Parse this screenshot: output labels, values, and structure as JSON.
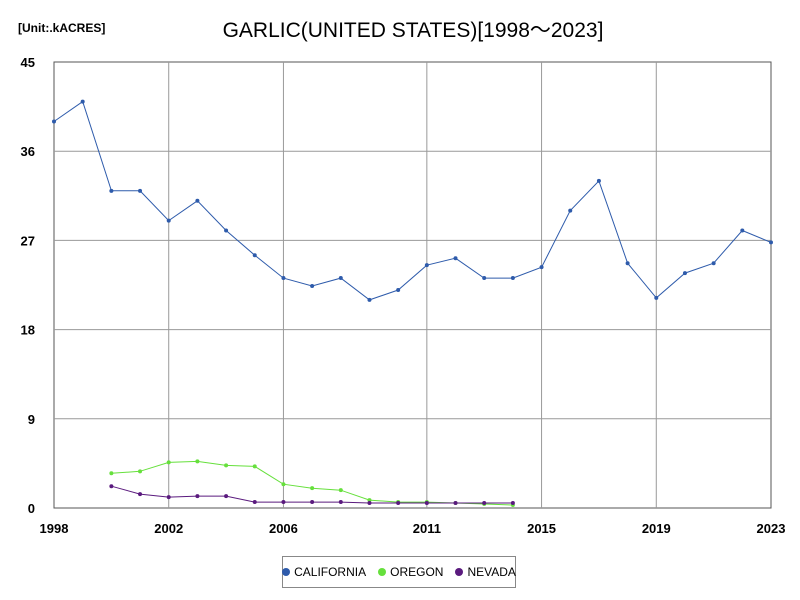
{
  "unit_label": "[Unit:.kACRES]",
  "chart_data": {
    "type": "line",
    "title": "GARLIC(UNITED STATES)[1998～2023]",
    "xlim": [
      1998,
      2023
    ],
    "ylim": [
      0,
      45
    ],
    "x_ticks": [
      "1998",
      "2002",
      "2006",
      "2011",
      "2015",
      "2019",
      "2023"
    ],
    "y_ticks": [
      "0",
      "9",
      "18",
      "27",
      "36",
      "45"
    ],
    "grid": true,
    "legend_position": "bottom",
    "series": [
      {
        "name": "CALIFORNIA",
        "color": "#2e5bab",
        "x": [
          1998,
          1999,
          2000,
          2001,
          2002,
          2003,
          2004,
          2005,
          2006,
          2007,
          2008,
          2009,
          2010,
          2011,
          2012,
          2013,
          2014,
          2015,
          2016,
          2017,
          2018,
          2019,
          2020,
          2021,
          2022,
          2023
        ],
        "values": [
          39,
          41,
          32,
          32,
          29,
          31,
          28,
          25.5,
          23.2,
          22.4,
          23.2,
          21,
          22,
          24.5,
          25.2,
          23.2,
          23.2,
          24.3,
          30,
          33,
          24.7,
          21.2,
          23.7,
          24.7,
          28,
          26.8
        ]
      },
      {
        "name": "OREGON",
        "color": "#66e03c",
        "x": [
          2000,
          2001,
          2002,
          2003,
          2004,
          2005,
          2006,
          2007,
          2008,
          2009,
          2010,
          2011,
          2012,
          2013,
          2014
        ],
        "values": [
          3.5,
          3.7,
          4.6,
          4.7,
          4.3,
          4.2,
          2.4,
          2,
          1.8,
          0.8,
          0.6,
          0.6,
          0.5,
          0.4,
          0.3
        ]
      },
      {
        "name": "NEVADA",
        "color": "#5a1a7e",
        "x": [
          2000,
          2001,
          2002,
          2003,
          2004,
          2005,
          2006,
          2007,
          2008,
          2009,
          2010,
          2011,
          2012,
          2013,
          2014
        ],
        "values": [
          2.2,
          1.4,
          1.1,
          1.2,
          1.2,
          0.6,
          0.6,
          0.6,
          0.6,
          0.5,
          0.5,
          0.5,
          0.5,
          0.5,
          0.5
        ]
      }
    ]
  }
}
